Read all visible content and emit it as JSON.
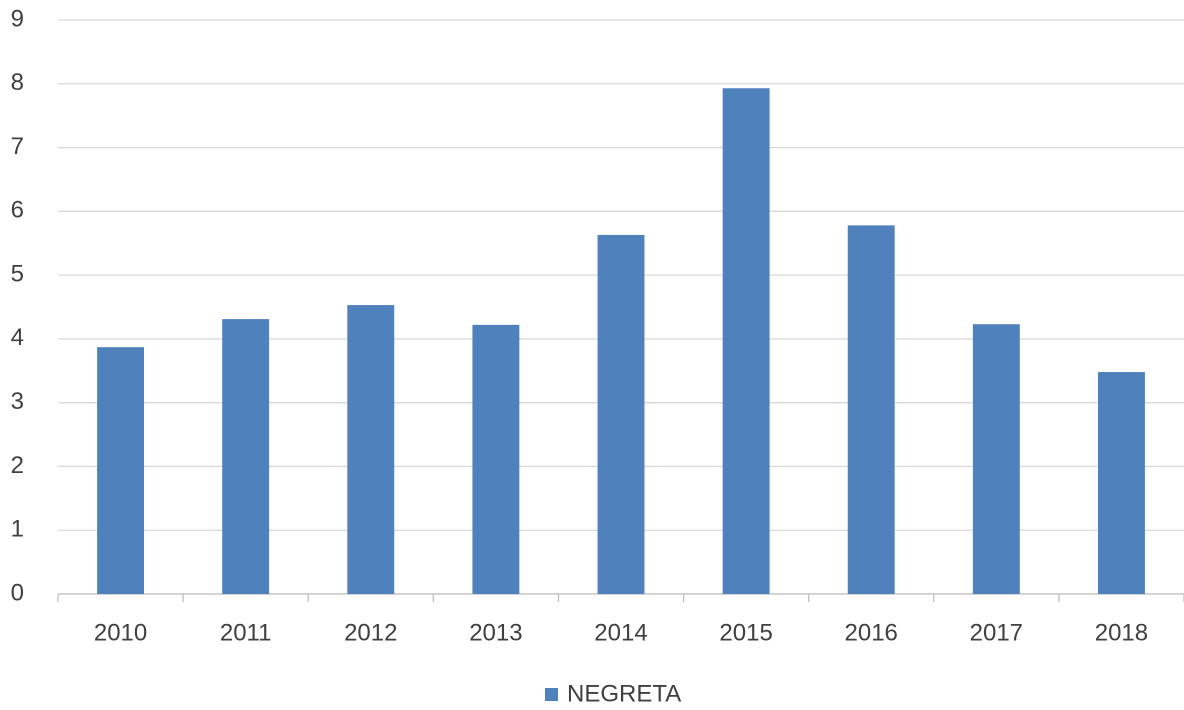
{
  "chart_data": {
    "type": "bar",
    "categories": [
      "2010",
      "2011",
      "2012",
      "2013",
      "2014",
      "2015",
      "2016",
      "2017",
      "2018"
    ],
    "series": [
      {
        "name": "NEGRETA",
        "color": "#4f81bd",
        "values": [
          3.87,
          4.31,
          4.53,
          4.22,
          5.63,
          7.93,
          5.78,
          4.23,
          3.48
        ]
      }
    ],
    "ylim": [
      0,
      9
    ],
    "yticks": [
      0,
      1,
      2,
      3,
      4,
      5,
      6,
      7,
      8,
      9
    ],
    "grid": true,
    "legend": "bottom"
  }
}
